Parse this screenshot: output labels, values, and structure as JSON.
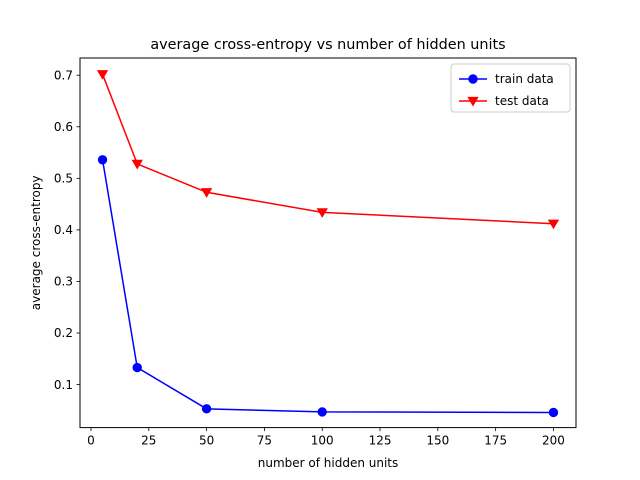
{
  "chart_data": {
    "type": "line",
    "title": "average cross-entropy vs number of hidden units",
    "xlabel": "number of hidden units",
    "ylabel": "average cross-entropy",
    "xlim": [
      -4.75,
      209.75
    ],
    "ylim": [
      0.0166,
      0.7334
    ],
    "xticks": [
      0,
      25,
      50,
      75,
      100,
      125,
      150,
      175,
      200
    ],
    "yticks": [
      0.1,
      0.2,
      0.3,
      0.4,
      0.5,
      0.6,
      0.7
    ],
    "grid": false,
    "legend_position": "upper right",
    "series": [
      {
        "name": "train data",
        "color": "#0000ff",
        "marker": "circle",
        "x": [
          5,
          20,
          50,
          100,
          200
        ],
        "y": [
          0.536,
          0.133,
          0.053,
          0.047,
          0.046
        ]
      },
      {
        "name": "test data",
        "color": "#ff0000",
        "marker": "triangle-down",
        "x": [
          5,
          20,
          50,
          100,
          200
        ],
        "y": [
          0.702,
          0.528,
          0.473,
          0.434,
          0.412
        ]
      }
    ]
  }
}
